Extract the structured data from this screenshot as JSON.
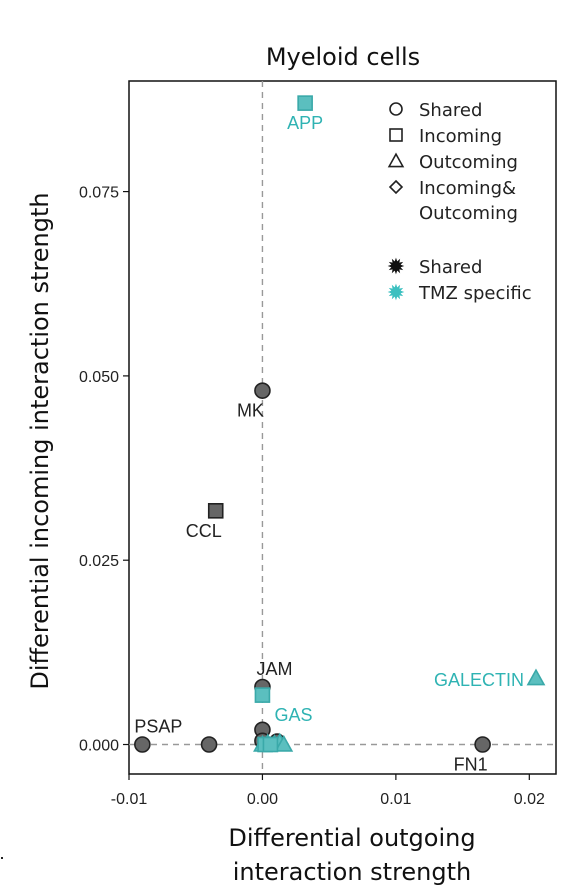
{
  "chart_data": {
    "type": "scatter",
    "title": "Myeloid cells",
    "xlabel": [
      "Differential outgoing",
      "interaction strength"
    ],
    "ylabel": "Differential incoming interaction strength",
    "xlim": [
      -0.01,
      0.022
    ],
    "ylim": [
      -0.004,
      0.09
    ],
    "xticks": [
      {
        "value": -0.01,
        "label": "-0.01"
      },
      {
        "value": 0.0,
        "label": "0.00"
      },
      {
        "value": 0.01,
        "label": "0.01"
      },
      {
        "value": 0.02,
        "label": "0.02"
      }
    ],
    "yticks": [
      {
        "value": 0.0,
        "label": "0.000"
      },
      {
        "value": 0.025,
        "label": "0.025"
      },
      {
        "value": 0.05,
        "label": "0.050"
      },
      {
        "value": 0.075,
        "label": "0.075"
      }
    ],
    "reference_lines": {
      "x": 0,
      "y": 0,
      "style": "dashed"
    },
    "colors": {
      "shared": "#666666",
      "tmz_specific": "#5bbfbf",
      "tmz_label": "#2fb3b3",
      "shared_label": "#222222"
    },
    "points": [
      {
        "label": "APP",
        "x": 0.0032,
        "y": 0.087,
        "shape": "square",
        "group": "TMZ specific",
        "label_pos": "below"
      },
      {
        "label": "MK",
        "x": 0.0,
        "y": 0.048,
        "shape": "circle",
        "group": "Shared",
        "label_pos": "below-left"
      },
      {
        "label": "CCL",
        "x": -0.0035,
        "y": 0.0317,
        "shape": "square",
        "group": "Shared",
        "label_pos": "below-left"
      },
      {
        "label": "JAM",
        "x": 0.0,
        "y": 0.0078,
        "shape": "circle",
        "group": "Shared",
        "label_pos": "above"
      },
      {
        "label": "GAS",
        "x": 0.0,
        "y": 0.0067,
        "shape": "square",
        "group": "TMZ specific",
        "label_pos": "below-right"
      },
      {
        "label": "GALECTIN",
        "x": 0.0205,
        "y": 0.009,
        "shape": "triangle",
        "group": "TMZ specific",
        "label_pos": "left"
      },
      {
        "label": "PSAP",
        "x": -0.009,
        "y": 0.0,
        "shape": "circle",
        "group": "Shared",
        "label_pos": "above-right"
      },
      {
        "label": "",
        "x": -0.004,
        "y": 0.0,
        "shape": "circle",
        "group": "Shared",
        "label_pos": "none"
      },
      {
        "label": "FN1",
        "x": 0.0165,
        "y": 0.0,
        "shape": "circle",
        "group": "Shared",
        "label_pos": "below-left"
      },
      {
        "label": "",
        "x": 0.0,
        "y": 0.002,
        "shape": "circle",
        "group": "Shared",
        "label_pos": "none"
      },
      {
        "label": "",
        "x": 0.0,
        "y": 0.0005,
        "shape": "circle",
        "group": "Shared",
        "label_pos": "none"
      },
      {
        "label": "",
        "x": 0.0011,
        "y": 0.0004,
        "shape": "circle",
        "group": "Shared",
        "label_pos": "none"
      },
      {
        "label": "",
        "x": 0.0,
        "y": 0.0,
        "shape": "triangle",
        "group": "TMZ specific",
        "label_pos": "none"
      },
      {
        "label": "",
        "x": 0.0004,
        "y": 0.0002,
        "shape": "triangle",
        "group": "TMZ specific",
        "label_pos": "none"
      },
      {
        "label": "",
        "x": 0.0009,
        "y": 0.0001,
        "shape": "triangle",
        "group": "TMZ specific",
        "label_pos": "none"
      },
      {
        "label": "",
        "x": 0.0013,
        "y": 0.0003,
        "shape": "triangle",
        "group": "TMZ specific",
        "label_pos": "none"
      },
      {
        "label": "",
        "x": 0.0016,
        "y": 0.0,
        "shape": "triangle",
        "group": "TMZ specific",
        "label_pos": "none"
      },
      {
        "label": "",
        "x": 0.0002,
        "y": 0.0,
        "shape": "square",
        "group": "TMZ specific",
        "label_pos": "none"
      },
      {
        "label": "",
        "x": 0.0006,
        "y": 0.0,
        "shape": "square",
        "group": "TMZ specific",
        "label_pos": "none"
      }
    ],
    "legend_shapes": [
      {
        "shape": "circle",
        "text": "Shared"
      },
      {
        "shape": "square",
        "text": "Incoming"
      },
      {
        "shape": "triangle",
        "text": "Outcoming"
      },
      {
        "shape": "diamond",
        "text": [
          "Incoming&",
          "Outcoming"
        ]
      }
    ],
    "legend_colors": [
      {
        "color": "#111111",
        "text": "Shared"
      },
      {
        "color": "#3cc0c0",
        "text": "TMZ specific"
      }
    ],
    "legend_position": "top-right",
    "grid": false
  }
}
